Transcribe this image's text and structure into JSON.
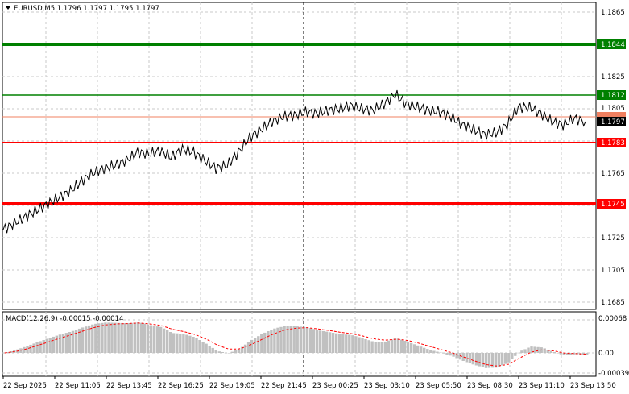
{
  "header": {
    "symbol_line": "EURUSD,M5  1.1796 1.1797 1.1795 1.1797",
    "menu_arrow": "triangle-down-icon"
  },
  "macd": {
    "label": "MACD(12,26,9) -0.00015 -0.00014",
    "axis_labels": [
      "0.00068",
      "0.00",
      "-0.00039"
    ]
  },
  "colors": {
    "green_level": "#008000",
    "red_level": "#ff0000",
    "ask_line": "#f08060",
    "price_line": "#000000",
    "grid": "#c8c8c8",
    "histogram": "#c0c0c0",
    "signal": "#ff0000"
  },
  "levels": [
    {
      "name": "green-thick",
      "value": "1.1844",
      "color": "green",
      "badge": "1.1844"
    },
    {
      "name": "green-thin",
      "value": "1.1812",
      "color": "green",
      "badge": "1.1812"
    },
    {
      "name": "red-thin",
      "value": "1.1783",
      "color": "red",
      "badge": "1.1783"
    },
    {
      "name": "red-thick",
      "value": "1.1745",
      "color": "red",
      "badge": "1.1745"
    }
  ],
  "price_scale": [
    "1.1865",
    "1.1844",
    "1.1825",
    "1.1812",
    "1.1805",
    "1.1797",
    "1.1783",
    "1.1765",
    "1.1745",
    "1.1725",
    "1.1705",
    "1.1685"
  ],
  "current_price": "1.1797",
  "time_axis": [
    "22 Sep 2025",
    "22 Sep 11:05",
    "22 Sep 13:45",
    "22 Sep 16:25",
    "22 Sep 19:05",
    "22 Sep 21:45",
    "23 Sep 00:25",
    "23 Sep 03:10",
    "23 Sep 05:50",
    "23 Sep 08:30",
    "23 Sep 11:10",
    "23 Sep 13:50"
  ],
  "chart_data": {
    "type": "line",
    "series": [
      {
        "values": [
          1.173,
          1.1734,
          1.1738,
          1.1742,
          1.1746,
          1.175,
          1.1754,
          1.176,
          1.1765,
          1.1768,
          1.177,
          1.1773,
          1.1778,
          1.1777,
          1.1779,
          1.1775,
          1.178,
          1.1778,
          1.1773,
          1.1768,
          1.177,
          1.1778,
          1.1787,
          1.1792,
          1.1797,
          1.18,
          1.1801,
          1.1803,
          1.1802,
          1.1804,
          1.1805,
          1.1807,
          1.1805,
          1.1804,
          1.1808,
          1.1814,
          1.1808,
          1.1806,
          1.1804,
          1.1803,
          1.18,
          1.1795,
          1.1792,
          1.1789,
          1.179,
          1.1795,
          1.1806,
          1.1806,
          1.1802,
          1.1797,
          1.1795,
          1.1799,
          1.1797
        ]
      }
    ]
  }
}
